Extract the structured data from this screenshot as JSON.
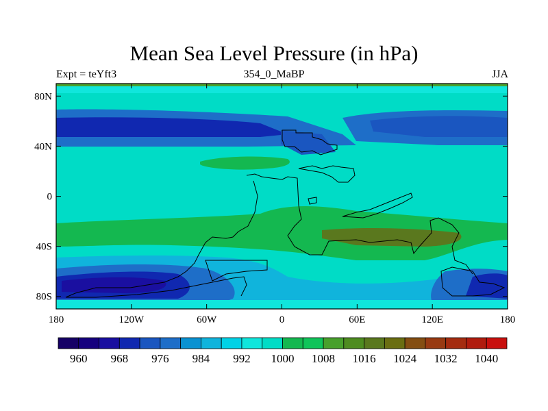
{
  "chart_data": {
    "type": "heatmap",
    "title": "Mean Sea Level Pressure (in hPa)",
    "left_label": "Expt = teYft3",
    "center_label": "354_0_MaBP",
    "right_label": "JJA",
    "x_ticks": [
      "180",
      "120W",
      "60W",
      "0",
      "60E",
      "120E",
      "180"
    ],
    "x_tick_values": [
      -180,
      -120,
      -60,
      0,
      60,
      120,
      180
    ],
    "y_ticks": [
      "80N",
      "40N",
      "0",
      "40S",
      "80S"
    ],
    "y_tick_values": [
      80,
      40,
      0,
      -40,
      -80
    ],
    "xlim": [
      -180,
      180
    ],
    "ylim": [
      -90,
      90
    ],
    "colorbar": {
      "levels": [
        956,
        960,
        964,
        968,
        972,
        976,
        980,
        984,
        988,
        992,
        996,
        1000,
        1004,
        1008,
        1012,
        1016,
        1020,
        1024,
        1028,
        1032,
        1036,
        1040,
        1044
      ],
      "labels": [
        "960",
        "968",
        "976",
        "984",
        "992",
        "1000",
        "1008",
        "1016",
        "1024",
        "1032",
        "1040"
      ],
      "label_values": [
        960,
        968,
        976,
        984,
        992,
        1000,
        1008,
        1016,
        1024,
        1032,
        1040
      ],
      "colors": [
        "#160066",
        "#16007e",
        "#1a0fa0",
        "#1028b0",
        "#1a56c0",
        "#1e6ec8",
        "#0a92d2",
        "#10b4dc",
        "#00d2e6",
        "#10e6dc",
        "#00dcc6",
        "#14b850",
        "#10c45a",
        "#48a02c",
        "#4e8c20",
        "#5a781e",
        "#6a6e12",
        "#844e12",
        "#983a12",
        "#a42c10",
        "#b01c0e",
        "#c8100e"
      ]
    }
  }
}
